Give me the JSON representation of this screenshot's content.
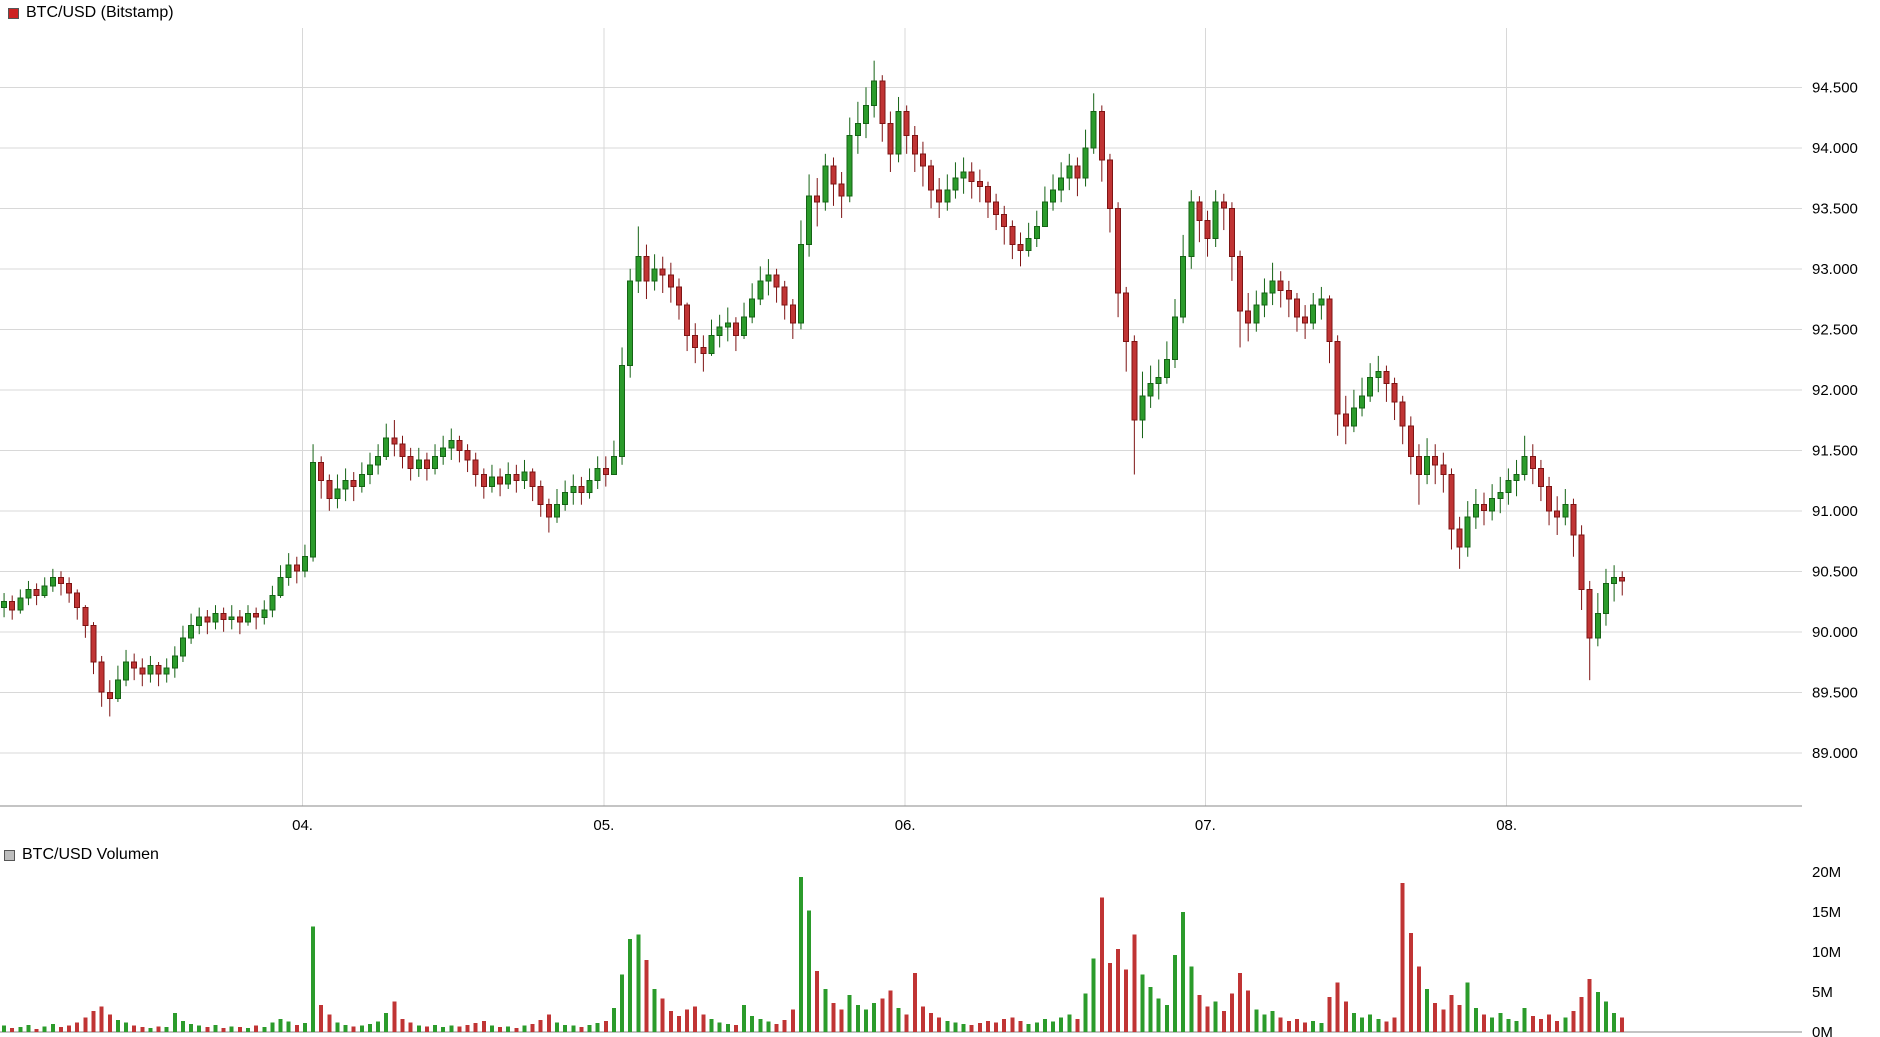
{
  "header": {
    "title": "BTC/USD (Bitstamp)",
    "legend_color": "#cc2222"
  },
  "volume_header": {
    "title": "BTC/USD Volumen",
    "legend_color": "#bdbdbd"
  },
  "chart_data": {
    "type": "candlestick",
    "title": "BTC/USD (Bitstamp)",
    "subtitle_volume": "BTC/USD Volumen",
    "grid": true,
    "legend_position": "top-left",
    "price_axis": {
      "side": "right",
      "range": [
        88.56,
        94.99
      ],
      "values": [
        94.5,
        94.0,
        93.5,
        93.0,
        92.5,
        92.0,
        91.5,
        91.0,
        90.5,
        90.0,
        89.5,
        89.0
      ],
      "labels": [
        "94.500",
        "94.000",
        "93.500",
        "93.000",
        "92.500",
        "92.000",
        "91.500",
        "91.000",
        "90.500",
        "90.000",
        "89.500",
        "89.000"
      ]
    },
    "time_axis": {
      "labels": [
        "04.",
        "05.",
        "06.",
        "07.",
        "08."
      ],
      "fractions": [
        0.1679,
        0.3351,
        0.5023,
        0.6689,
        0.8361
      ]
    },
    "volume_axis": {
      "side": "right",
      "values": [
        20,
        15,
        10,
        5,
        0
      ],
      "labels": [
        "20M",
        "15M",
        "10M",
        "5M",
        "0M"
      ],
      "unit": "M"
    },
    "colors": {
      "up": "#2b9b2b",
      "up_border": "#156315",
      "down": "#c03434",
      "down_border": "#7e1414",
      "grid": "#d8d8d8",
      "axis": "#8a8a8a"
    },
    "x_extent_fraction": 0.9025,
    "open_first": 90.2,
    "candles_format": [
      "close",
      "high",
      "low"
    ],
    "candles": [
      [
        90.25,
        90.32,
        90.12
      ],
      [
        90.18,
        90.3,
        90.1
      ],
      [
        90.28,
        90.35,
        90.15
      ],
      [
        90.35,
        90.42,
        90.22
      ],
      [
        90.3,
        90.4,
        90.22
      ],
      [
        90.38,
        90.45,
        90.28
      ],
      [
        90.45,
        90.52,
        90.33
      ],
      [
        90.4,
        90.5,
        90.3
      ],
      [
        90.32,
        90.45,
        90.24
      ],
      [
        90.2,
        90.35,
        90.1
      ],
      [
        90.05,
        90.22,
        89.95
      ],
      [
        89.75,
        90.08,
        89.65
      ],
      [
        89.5,
        89.8,
        89.38
      ],
      [
        89.45,
        89.6,
        89.3
      ],
      [
        89.6,
        89.72,
        89.42
      ],
      [
        89.75,
        89.85,
        89.55
      ],
      [
        89.7,
        89.82,
        89.6
      ],
      [
        89.65,
        89.78,
        89.55
      ],
      [
        89.72,
        89.8,
        89.58
      ],
      [
        89.65,
        89.75,
        89.55
      ],
      [
        89.7,
        89.78,
        89.58
      ],
      [
        89.8,
        89.88,
        89.62
      ],
      [
        89.95,
        90.05,
        89.75
      ],
      [
        90.05,
        90.15,
        89.9
      ],
      [
        90.12,
        90.2,
        89.98
      ],
      [
        90.08,
        90.18,
        89.98
      ],
      [
        90.15,
        90.22,
        90.02
      ],
      [
        90.1,
        90.2,
        90.0
      ],
      [
        90.12,
        90.22,
        90.02
      ],
      [
        90.08,
        90.18,
        89.98
      ],
      [
        90.15,
        90.22,
        90.05
      ],
      [
        90.12,
        90.2,
        90.02
      ],
      [
        90.18,
        90.26,
        90.06
      ],
      [
        90.3,
        90.38,
        90.12
      ],
      [
        90.45,
        90.55,
        90.28
      ],
      [
        90.55,
        90.65,
        90.38
      ],
      [
        90.5,
        90.62,
        90.4
      ],
      [
        90.62,
        90.72,
        90.45
      ],
      [
        91.4,
        91.55,
        90.58
      ],
      [
        91.25,
        91.45,
        91.1
      ],
      [
        91.1,
        91.3,
        91.0
      ],
      [
        91.18,
        91.3,
        91.02
      ],
      [
        91.25,
        91.35,
        91.08
      ],
      [
        91.2,
        91.32,
        91.08
      ],
      [
        91.3,
        91.4,
        91.15
      ],
      [
        91.38,
        91.48,
        91.22
      ],
      [
        91.45,
        91.55,
        91.3
      ],
      [
        91.6,
        91.72,
        91.42
      ],
      [
        91.55,
        91.75,
        91.45
      ],
      [
        91.45,
        91.62,
        91.35
      ],
      [
        91.35,
        91.52,
        91.25
      ],
      [
        91.42,
        91.52,
        91.28
      ],
      [
        91.35,
        91.48,
        91.25
      ],
      [
        91.45,
        91.55,
        91.3
      ],
      [
        91.52,
        91.62,
        91.38
      ],
      [
        91.58,
        91.68,
        91.42
      ],
      [
        91.5,
        91.62,
        91.4
      ],
      [
        91.42,
        91.55,
        91.32
      ],
      [
        91.3,
        91.48,
        91.2
      ],
      [
        91.2,
        91.35,
        91.1
      ],
      [
        91.28,
        91.38,
        91.15
      ],
      [
        91.22,
        91.35,
        91.12
      ],
      [
        91.3,
        91.4,
        91.18
      ],
      [
        91.25,
        91.38,
        91.15
      ],
      [
        91.32,
        91.42,
        91.18
      ],
      [
        91.2,
        91.35,
        91.08
      ],
      [
        91.05,
        91.25,
        90.95
      ],
      [
        90.95,
        91.1,
        90.82
      ],
      [
        91.05,
        91.18,
        90.9
      ],
      [
        91.15,
        91.25,
        91.0
      ],
      [
        91.2,
        91.3,
        91.05
      ],
      [
        91.15,
        91.28,
        91.05
      ],
      [
        91.25,
        91.35,
        91.1
      ],
      [
        91.35,
        91.45,
        91.18
      ],
      [
        91.3,
        91.45,
        91.2
      ],
      [
        91.45,
        91.58,
        91.3
      ],
      [
        92.2,
        92.35,
        91.38
      ],
      [
        92.9,
        93.0,
        92.1
      ],
      [
        93.1,
        93.35,
        92.8
      ],
      [
        92.9,
        93.2,
        92.75
      ],
      [
        93.0,
        93.12,
        92.82
      ],
      [
        92.95,
        93.1,
        92.8
      ],
      [
        92.85,
        93.05,
        92.72
      ],
      [
        92.7,
        92.92,
        92.58
      ],
      [
        92.45,
        92.72,
        92.32
      ],
      [
        92.35,
        92.55,
        92.22
      ],
      [
        92.3,
        92.45,
        92.15
      ],
      [
        92.45,
        92.58,
        92.28
      ],
      [
        92.52,
        92.62,
        92.35
      ],
      [
        92.55,
        92.68,
        92.4
      ],
      [
        92.45,
        92.6,
        92.32
      ],
      [
        92.6,
        92.72,
        92.42
      ],
      [
        92.75,
        92.88,
        92.55
      ],
      [
        92.9,
        93.02,
        92.7
      ],
      [
        92.95,
        93.08,
        92.78
      ],
      [
        92.85,
        93.0,
        92.72
      ],
      [
        92.7,
        92.9,
        92.58
      ],
      [
        92.55,
        92.75,
        92.42
      ],
      [
        93.2,
        93.4,
        92.5
      ],
      [
        93.6,
        93.78,
        93.1
      ],
      [
        93.55,
        93.75,
        93.35
      ],
      [
        93.85,
        93.95,
        93.48
      ],
      [
        93.7,
        93.92,
        93.52
      ],
      [
        93.6,
        93.8,
        93.42
      ],
      [
        94.1,
        94.25,
        93.55
      ],
      [
        94.2,
        94.38,
        93.95
      ],
      [
        94.35,
        94.5,
        94.08
      ],
      [
        94.55,
        94.72,
        94.25
      ],
      [
        94.2,
        94.6,
        94.05
      ],
      [
        93.95,
        94.3,
        93.8
      ],
      [
        94.3,
        94.42,
        93.88
      ],
      [
        94.1,
        94.35,
        93.95
      ],
      [
        93.95,
        94.18,
        93.8
      ],
      [
        93.85,
        94.05,
        93.68
      ],
      [
        93.65,
        93.9,
        93.5
      ],
      [
        93.55,
        93.75,
        93.42
      ],
      [
        93.65,
        93.78,
        93.48
      ],
      [
        93.75,
        93.88,
        93.58
      ],
      [
        93.8,
        93.92,
        93.62
      ],
      [
        93.72,
        93.88,
        93.58
      ],
      [
        93.68,
        93.82,
        93.55
      ],
      [
        93.55,
        93.72,
        93.42
      ],
      [
        93.45,
        93.62,
        93.32
      ],
      [
        93.35,
        93.52,
        93.2
      ],
      [
        93.2,
        93.4,
        93.08
      ],
      [
        93.15,
        93.3,
        93.02
      ],
      [
        93.25,
        93.38,
        93.1
      ],
      [
        93.35,
        93.48,
        93.18
      ],
      [
        93.55,
        93.68,
        93.35
      ],
      [
        93.65,
        93.78,
        93.48
      ],
      [
        93.75,
        93.88,
        93.55
      ],
      [
        93.85,
        93.95,
        93.65
      ],
      [
        93.75,
        93.92,
        93.6
      ],
      [
        94.0,
        94.15,
        93.68
      ],
      [
        94.3,
        94.45,
        93.95
      ],
      [
        93.9,
        94.35,
        93.72
      ],
      [
        93.5,
        93.95,
        93.3
      ],
      [
        92.8,
        93.55,
        92.6
      ],
      [
        92.4,
        92.85,
        92.15
      ],
      [
        91.75,
        92.45,
        91.3
      ],
      [
        91.95,
        92.15,
        91.6
      ],
      [
        92.05,
        92.2,
        91.85
      ],
      [
        92.1,
        92.25,
        91.92
      ],
      [
        92.25,
        92.4,
        92.05
      ],
      [
        92.6,
        92.75,
        92.18
      ],
      [
        93.1,
        93.28,
        92.55
      ],
      [
        93.55,
        93.65,
        93.0
      ],
      [
        93.4,
        93.6,
        93.22
      ],
      [
        93.25,
        93.48,
        93.1
      ],
      [
        93.55,
        93.65,
        93.18
      ],
      [
        93.5,
        93.62,
        93.32
      ],
      [
        93.1,
        93.55,
        92.9
      ],
      [
        92.65,
        93.15,
        92.35
      ],
      [
        92.55,
        92.8,
        92.4
      ],
      [
        92.7,
        92.82,
        92.48
      ],
      [
        92.8,
        92.92,
        92.6
      ],
      [
        92.9,
        93.05,
        92.7
      ],
      [
        92.82,
        92.98,
        92.68
      ],
      [
        92.75,
        92.9,
        92.6
      ],
      [
        92.6,
        92.8,
        92.48
      ],
      [
        92.55,
        92.7,
        92.42
      ],
      [
        92.7,
        92.8,
        92.5
      ],
      [
        92.75,
        92.85,
        92.58
      ],
      [
        92.4,
        92.78,
        92.22
      ],
      [
        91.8,
        92.45,
        91.62
      ],
      [
        91.7,
        91.95,
        91.55
      ],
      [
        91.85,
        92.0,
        91.65
      ],
      [
        91.95,
        92.1,
        91.78
      ],
      [
        92.1,
        92.22,
        91.9
      ],
      [
        92.15,
        92.28,
        91.98
      ],
      [
        92.05,
        92.2,
        91.9
      ],
      [
        91.9,
        92.1,
        91.75
      ],
      [
        91.7,
        91.95,
        91.55
      ],
      [
        91.45,
        91.78,
        91.3
      ],
      [
        91.3,
        91.55,
        91.05
      ],
      [
        91.45,
        91.6,
        91.22
      ],
      [
        91.38,
        91.55,
        91.22
      ],
      [
        91.3,
        91.48,
        91.15
      ],
      [
        90.85,
        91.35,
        90.68
      ],
      [
        90.7,
        90.95,
        90.52
      ],
      [
        90.95,
        91.08,
        90.62
      ],
      [
        91.05,
        91.18,
        90.85
      ],
      [
        91.0,
        91.15,
        90.88
      ],
      [
        91.1,
        91.22,
        90.92
      ],
      [
        91.15,
        91.28,
        90.98
      ],
      [
        91.25,
        91.35,
        91.05
      ],
      [
        91.3,
        91.42,
        91.12
      ],
      [
        91.45,
        91.62,
        91.25
      ],
      [
        91.35,
        91.55,
        91.22
      ],
      [
        91.2,
        91.42,
        91.08
      ],
      [
        91.0,
        91.28,
        90.88
      ],
      [
        90.95,
        91.12,
        90.8
      ],
      [
        91.05,
        91.18,
        90.88
      ],
      [
        90.8,
        91.1,
        90.62
      ],
      [
        90.35,
        90.88,
        90.18
      ],
      [
        89.95,
        90.42,
        89.6
      ],
      [
        90.15,
        90.32,
        89.88
      ],
      [
        90.4,
        90.52,
        90.05
      ],
      [
        90.45,
        90.55,
        90.25
      ],
      [
        90.42,
        90.5,
        90.3
      ]
    ],
    "volumes_millions": [
      0.8,
      0.5,
      0.6,
      0.9,
      0.4,
      0.7,
      1.0,
      0.6,
      0.8,
      1.2,
      1.8,
      2.6,
      3.2,
      2.2,
      1.5,
      1.2,
      0.8,
      0.6,
      0.5,
      0.7,
      0.6,
      2.4,
      1.4,
      1.0,
      0.8,
      0.6,
      0.9,
      0.5,
      0.7,
      0.6,
      0.5,
      0.8,
      0.6,
      1.2,
      1.6,
      1.3,
      0.9,
      1.1,
      13.2,
      3.4,
      2.2,
      1.2,
      0.9,
      0.7,
      0.8,
      1.0,
      1.3,
      2.4,
      3.8,
      1.6,
      1.2,
      0.8,
      0.7,
      0.9,
      0.6,
      0.8,
      0.7,
      0.9,
      1.1,
      1.4,
      0.8,
      0.6,
      0.7,
      0.5,
      0.8,
      1.0,
      1.5,
      2.2,
      1.2,
      0.9,
      0.8,
      0.6,
      0.9,
      1.1,
      1.4,
      3.0,
      7.2,
      11.6,
      12.2,
      9.0,
      5.4,
      4.2,
      2.6,
      2.0,
      2.8,
      3.2,
      2.2,
      1.6,
      1.2,
      1.0,
      0.9,
      3.4,
      2.0,
      1.6,
      1.3,
      1.0,
      1.5,
      2.8,
      19.4,
      15.2,
      7.6,
      5.4,
      3.6,
      2.8,
      4.6,
      3.4,
      2.8,
      3.6,
      4.2,
      5.2,
      3.0,
      2.2,
      7.4,
      3.2,
      2.4,
      1.8,
      1.4,
      1.2,
      1.0,
      0.9,
      1.1,
      1.4,
      1.2,
      1.6,
      1.8,
      1.4,
      1.0,
      1.2,
      1.6,
      1.3,
      1.8,
      2.2,
      1.6,
      4.8,
      9.2,
      16.8,
      8.6,
      10.4,
      7.8,
      12.2,
      7.2,
      5.6,
      4.2,
      3.4,
      9.6,
      15.0,
      8.2,
      4.6,
      3.2,
      3.8,
      2.6,
      4.8,
      7.4,
      5.2,
      2.8,
      2.2,
      2.6,
      1.8,
      1.4,
      1.6,
      1.2,
      1.4,
      1.1,
      4.4,
      6.2,
      3.8,
      2.4,
      1.8,
      2.2,
      1.6,
      1.3,
      1.8,
      18.6,
      12.4,
      8.2,
      5.4,
      3.6,
      2.8,
      4.6,
      3.4,
      6.2,
      3.0,
      2.2,
      1.8,
      2.4,
      1.6,
      1.4,
      3.0,
      2.0,
      1.6,
      2.2,
      1.4,
      1.8,
      2.6,
      4.4,
      6.6,
      5.0,
      3.8,
      2.4,
      1.8
    ]
  }
}
